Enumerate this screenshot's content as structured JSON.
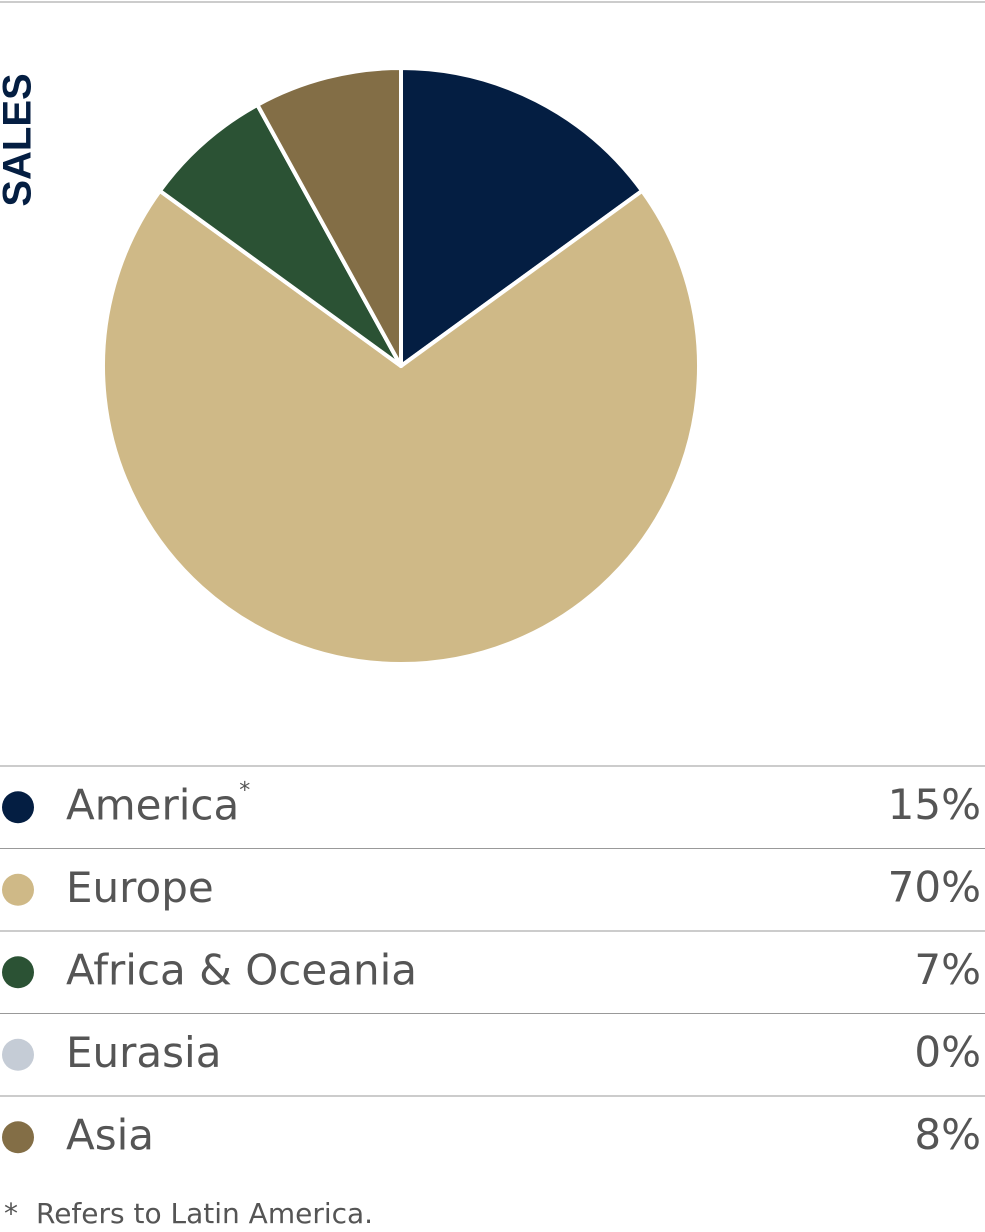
{
  "chart_data": {
    "type": "pie",
    "title": "SALES",
    "categories": [
      "America",
      "Europe",
      "Africa & Oceania",
      "Eurasia",
      "Asia"
    ],
    "category_notes": [
      "*",
      null,
      null,
      null,
      null
    ],
    "values": [
      15,
      70,
      7,
      0,
      8
    ],
    "value_labels": [
      "15%",
      "70%",
      "7%",
      "0%",
      "8%"
    ],
    "colors": [
      "#041e42",
      "#cfb987",
      "#2b5234",
      "#c5ccd6",
      "#836e46"
    ],
    "footnote": {
      "marker": "*",
      "text": "Refers to Latin America."
    }
  }
}
